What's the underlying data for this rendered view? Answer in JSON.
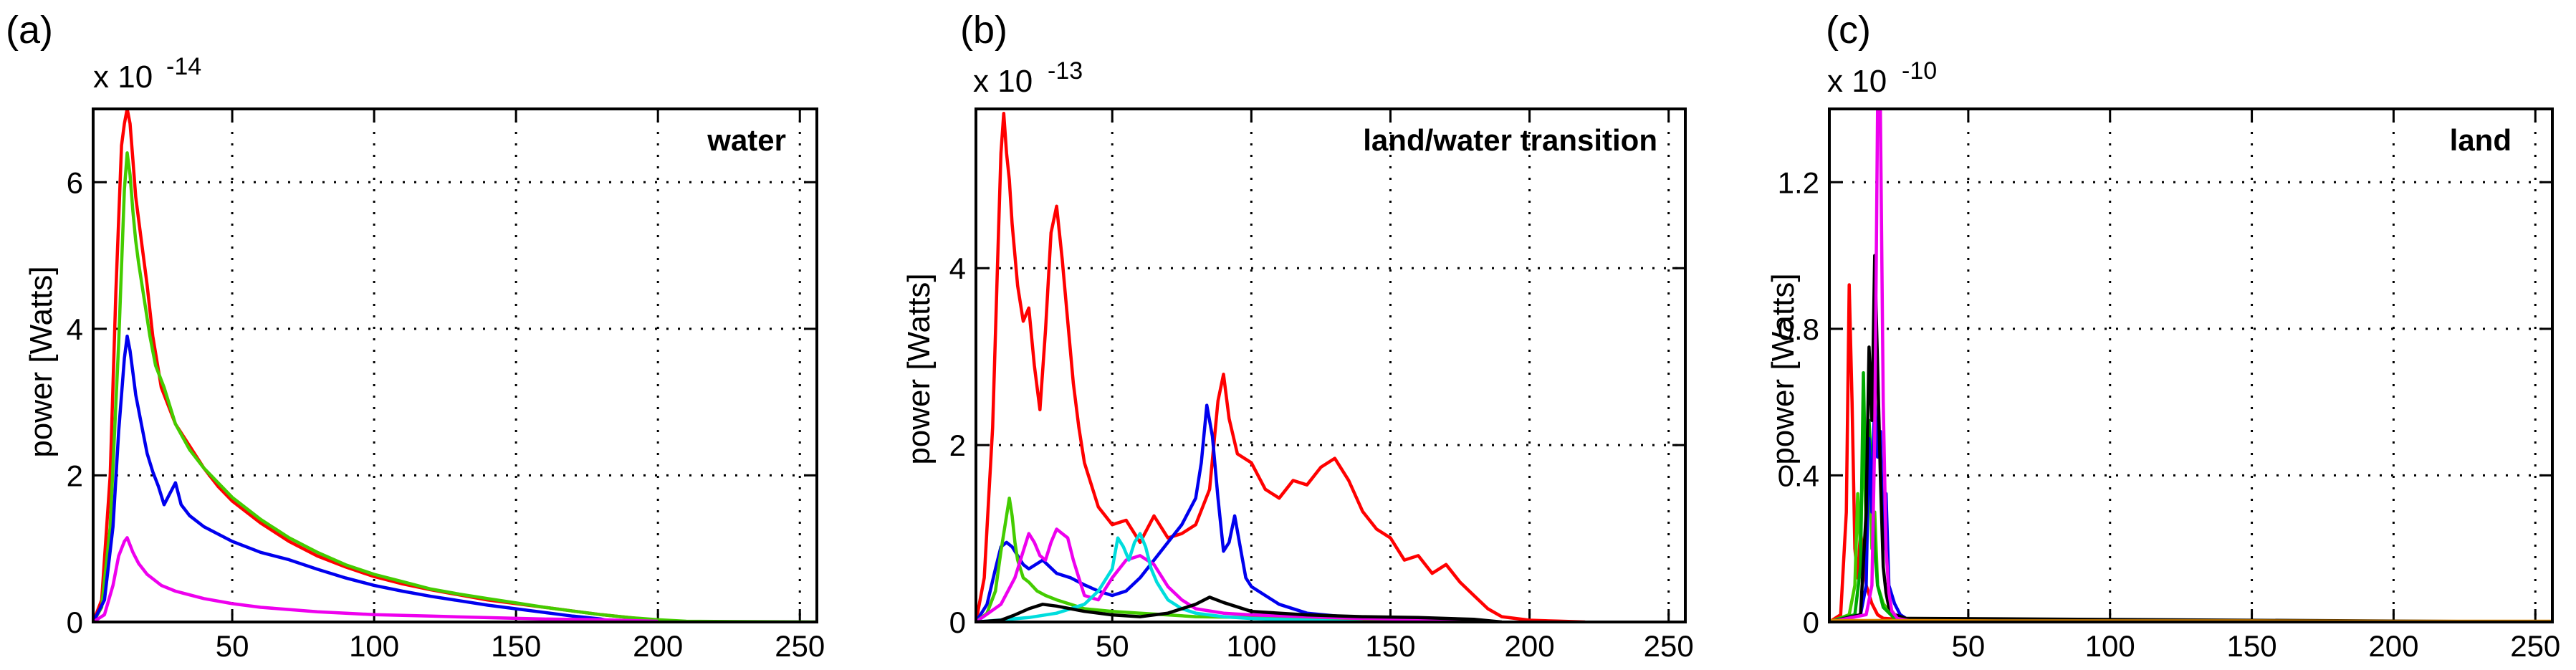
{
  "chart_data": [
    {
      "type": "line",
      "panel_label": "(a)",
      "annotation": "water",
      "ylabel": "power [Watts]",
      "scale_base": "x 10",
      "scale_exponent": "-14",
      "xlim": [
        1,
        256
      ],
      "ylim": [
        0,
        7
      ],
      "xticks": [
        50,
        100,
        150,
        200,
        250
      ],
      "xtick_labels": [
        "50",
        "100",
        "150",
        "200",
        "250"
      ],
      "yticks": [
        0,
        2,
        4,
        6
      ],
      "ytick_labels": [
        "0",
        "2",
        "4",
        "6"
      ],
      "grid": true,
      "series": [
        {
          "color": "#ff0000",
          "x": [
            1,
            4,
            7,
            9,
            11,
            12,
            13,
            14,
            15,
            16,
            18,
            20,
            22,
            25,
            30,
            35,
            40,
            45,
            50,
            60,
            70,
            80,
            90,
            100,
            110,
            120,
            130,
            140,
            150,
            160,
            170,
            180,
            190,
            200,
            205
          ],
          "y": [
            0,
            0.3,
            2.0,
            4.5,
            6.5,
            6.8,
            7.0,
            6.8,
            6.3,
            5.8,
            5.2,
            4.6,
            3.9,
            3.2,
            2.7,
            2.4,
            2.1,
            1.85,
            1.65,
            1.35,
            1.1,
            0.9,
            0.75,
            0.62,
            0.52,
            0.44,
            0.37,
            0.3,
            0.25,
            0.2,
            0.15,
            0.1,
            0.06,
            0.02,
            0.0
          ]
        },
        {
          "color": "#44cc00",
          "x": [
            1,
            4,
            7,
            10,
            12,
            13,
            14,
            15,
            16,
            17,
            19,
            21,
            23,
            26,
            30,
            35,
            40,
            45,
            50,
            60,
            70,
            80,
            90,
            100,
            110,
            120,
            130,
            140,
            150,
            160,
            170,
            180,
            190,
            200,
            210,
            256
          ],
          "y": [
            0,
            0.2,
            1.3,
            3.8,
            5.9,
            6.4,
            6.1,
            5.6,
            5.2,
            4.9,
            4.4,
            3.9,
            3.5,
            3.2,
            2.7,
            2.35,
            2.1,
            1.9,
            1.7,
            1.4,
            1.15,
            0.95,
            0.78,
            0.65,
            0.55,
            0.45,
            0.38,
            0.32,
            0.26,
            0.2,
            0.15,
            0.1,
            0.06,
            0.03,
            0.01,
            0
          ]
        },
        {
          "color": "#0000ee",
          "x": [
            1,
            5,
            8,
            10,
            12,
            13,
            14,
            15,
            16,
            18,
            20,
            22,
            24,
            26,
            28,
            30,
            32,
            35,
            40,
            45,
            50,
            60,
            70,
            80,
            90,
            100,
            110,
            120,
            130,
            140,
            150,
            160,
            170,
            180,
            185
          ],
          "y": [
            0,
            0.3,
            1.3,
            2.6,
            3.6,
            3.9,
            3.7,
            3.4,
            3.1,
            2.7,
            2.3,
            2.05,
            1.85,
            1.6,
            1.75,
            1.9,
            1.6,
            1.45,
            1.3,
            1.2,
            1.1,
            0.95,
            0.85,
            0.72,
            0.6,
            0.5,
            0.42,
            0.35,
            0.29,
            0.23,
            0.18,
            0.13,
            0.08,
            0.04,
            0
          ]
        },
        {
          "color": "#ee00ee",
          "x": [
            1,
            5,
            8,
            10,
            12,
            13,
            14,
            15,
            17,
            20,
            25,
            30,
            40,
            50,
            60,
            70,
            80,
            90,
            100,
            120,
            140,
            160,
            180,
            200
          ],
          "y": [
            0,
            0.1,
            0.5,
            0.9,
            1.1,
            1.15,
            1.05,
            0.95,
            0.8,
            0.65,
            0.5,
            0.42,
            0.32,
            0.25,
            0.2,
            0.17,
            0.14,
            0.12,
            0.1,
            0.08,
            0.06,
            0.04,
            0.03,
            0.01
          ]
        }
      ]
    },
    {
      "type": "line",
      "panel_label": "(b)",
      "annotation": "land/water transition",
      "ylabel": "power [Watts]",
      "scale_base": "x 10",
      "scale_exponent": "-13",
      "xlim": [
        1,
        256
      ],
      "ylim": [
        0,
        5.8
      ],
      "xticks": [
        50,
        100,
        150,
        200,
        250
      ],
      "xtick_labels": [
        "50",
        "100",
        "150",
        "200",
        "250"
      ],
      "yticks": [
        0,
        2,
        4
      ],
      "ytick_labels": [
        "0",
        "2",
        "4"
      ],
      "grid": true,
      "series": [
        {
          "color": "#ff0000",
          "x": [
            1,
            4,
            7,
            9,
            10,
            11,
            12,
            13,
            14,
            16,
            18,
            20,
            22,
            24,
            26,
            28,
            30,
            32,
            34,
            36,
            38,
            40,
            45,
            50,
            55,
            60,
            65,
            70,
            75,
            80,
            85,
            88,
            90,
            92,
            95,
            100,
            105,
            110,
            115,
            120,
            125,
            130,
            135,
            140,
            145,
            150,
            155,
            160,
            165,
            170,
            175,
            180,
            185,
            190,
            200,
            210,
            220
          ],
          "y": [
            0,
            0.5,
            2.2,
            4.3,
            5.3,
            5.75,
            5.3,
            5.0,
            4.5,
            3.8,
            3.4,
            3.55,
            2.9,
            2.4,
            3.3,
            4.4,
            4.7,
            4.1,
            3.4,
            2.7,
            2.2,
            1.8,
            1.3,
            1.1,
            1.15,
            0.9,
            1.2,
            0.95,
            1.0,
            1.1,
            1.5,
            2.5,
            2.8,
            2.3,
            1.9,
            1.8,
            1.5,
            1.4,
            1.6,
            1.55,
            1.75,
            1.85,
            1.6,
            1.25,
            1.05,
            0.95,
            0.7,
            0.75,
            0.55,
            0.65,
            0.45,
            0.3,
            0.15,
            0.06,
            0.02,
            0.01,
            0
          ]
        },
        {
          "color": "#0000ee",
          "x": [
            1,
            5,
            8,
            10,
            12,
            14,
            16,
            18,
            20,
            25,
            30,
            35,
            40,
            45,
            50,
            55,
            60,
            65,
            70,
            75,
            80,
            82,
            84,
            86,
            88,
            90,
            92,
            94,
            96,
            98,
            100,
            105,
            110,
            120,
            140,
            160
          ],
          "y": [
            0,
            0.2,
            0.6,
            0.85,
            0.9,
            0.85,
            0.75,
            0.65,
            0.6,
            0.7,
            0.55,
            0.5,
            0.42,
            0.35,
            0.3,
            0.35,
            0.5,
            0.7,
            0.9,
            1.1,
            1.4,
            1.8,
            2.45,
            2.1,
            1.4,
            0.8,
            0.9,
            1.2,
            0.85,
            0.5,
            0.4,
            0.3,
            0.2,
            0.1,
            0.04,
            0
          ]
        },
        {
          "color": "#44cc00",
          "x": [
            1,
            5,
            8,
            10,
            12,
            13,
            14,
            15,
            16,
            18,
            20,
            23,
            26,
            30,
            35,
            40,
            50,
            60,
            70,
            80,
            100,
            120,
            140,
            160,
            180
          ],
          "y": [
            0,
            0.1,
            0.35,
            0.8,
            1.2,
            1.4,
            1.2,
            0.9,
            0.7,
            0.5,
            0.45,
            0.35,
            0.3,
            0.25,
            0.2,
            0.15,
            0.12,
            0.1,
            0.08,
            0.06,
            0.05,
            0.04,
            0.03,
            0.02,
            0
          ]
        },
        {
          "color": "#ee00ee",
          "x": [
            1,
            10,
            15,
            18,
            20,
            22,
            24,
            26,
            28,
            30,
            32,
            34,
            36,
            38,
            40,
            45,
            50,
            55,
            60,
            65,
            70,
            75,
            80,
            90,
            100,
            120,
            140,
            160,
            180
          ],
          "y": [
            0,
            0.2,
            0.5,
            0.8,
            1.0,
            0.9,
            0.75,
            0.7,
            0.9,
            1.05,
            1.0,
            0.95,
            0.7,
            0.5,
            0.3,
            0.25,
            0.5,
            0.7,
            0.75,
            0.65,
            0.4,
            0.25,
            0.15,
            0.1,
            0.08,
            0.06,
            0.04,
            0.03,
            0.01
          ]
        },
        {
          "color": "#00dddd",
          "x": [
            1,
            20,
            30,
            40,
            45,
            50,
            52,
            54,
            56,
            58,
            60,
            62,
            64,
            66,
            68,
            70,
            75,
            80,
            90,
            100,
            120,
            140
          ],
          "y": [
            0,
            0.05,
            0.1,
            0.2,
            0.35,
            0.6,
            0.95,
            0.85,
            0.7,
            0.9,
            1.0,
            0.85,
            0.6,
            0.45,
            0.35,
            0.25,
            0.15,
            0.1,
            0.06,
            0.04,
            0.02,
            0
          ]
        },
        {
          "color": "#000000",
          "x": [
            1,
            10,
            15,
            20,
            25,
            30,
            40,
            50,
            60,
            70,
            80,
            85,
            90,
            100,
            120,
            140,
            160,
            180,
            190
          ],
          "y": [
            0,
            0.02,
            0.08,
            0.15,
            0.2,
            0.18,
            0.12,
            0.08,
            0.06,
            0.1,
            0.2,
            0.28,
            0.22,
            0.12,
            0.08,
            0.06,
            0.05,
            0.03,
            0
          ]
        }
      ]
    },
    {
      "type": "line",
      "panel_label": "(c)",
      "annotation": "land",
      "ylabel": "power [Watts]",
      "scale_base": "x 10",
      "scale_exponent": "-10",
      "xlim": [
        1,
        256
      ],
      "ylim": [
        0,
        1.4
      ],
      "xticks": [
        50,
        100,
        150,
        200,
        250
      ],
      "xtick_labels": [
        "50",
        "100",
        "150",
        "200",
        "250"
      ],
      "yticks": [
        0,
        0.4,
        0.8,
        1.2
      ],
      "ytick_labels": [
        "0",
        "0.4",
        "0.8",
        "1.2"
      ],
      "grid": true,
      "series": [
        {
          "color": "#ff0000",
          "x": [
            1,
            5,
            7,
            8,
            9,
            10,
            11,
            12,
            14,
            16,
            18,
            20,
            30,
            50,
            256
          ],
          "y": [
            0,
            0.02,
            0.3,
            0.92,
            0.6,
            0.2,
            0.12,
            0.25,
            0.1,
            0.05,
            0.02,
            0.01,
            0.005,
            0.002,
            0
          ]
        },
        {
          "color": "#44cc00",
          "x": [
            1,
            8,
            10,
            11,
            12,
            13,
            14,
            15,
            16,
            17,
            18,
            20,
            22,
            25,
            30,
            50,
            256
          ],
          "y": [
            0,
            0.02,
            0.1,
            0.35,
            0.2,
            0.55,
            0.25,
            0.45,
            0.2,
            0.3,
            0.1,
            0.05,
            0.03,
            0.01,
            0.005,
            0.002,
            0
          ]
        },
        {
          "color": "#00aa00",
          "x": [
            1,
            10,
            12,
            13,
            14,
            15,
            16,
            17,
            18,
            20,
            24,
            30,
            256
          ],
          "y": [
            0,
            0.02,
            0.15,
            0.68,
            0.3,
            0.55,
            0.4,
            0.2,
            0.1,
            0.04,
            0.01,
            0,
            0
          ]
        },
        {
          "color": "#0000ee",
          "x": [
            1,
            12,
            14,
            15,
            16,
            17,
            18,
            19,
            20,
            21,
            22,
            24,
            26,
            30,
            256
          ],
          "y": [
            0,
            0.02,
            0.1,
            0.5,
            0.3,
            0.62,
            0.45,
            0.52,
            0.2,
            0.35,
            0.1,
            0.05,
            0.02,
            0,
            0
          ]
        },
        {
          "color": "#000000",
          "x": [
            1,
            12,
            14,
            15,
            16,
            17,
            18,
            19,
            20,
            21,
            22,
            24,
            28,
            256
          ],
          "y": [
            0,
            0.02,
            0.3,
            0.75,
            0.55,
            1.0,
            0.7,
            0.4,
            0.15,
            0.08,
            0.04,
            0.02,
            0.01,
            0
          ]
        },
        {
          "color": "#ee00ee",
          "x": [
            1,
            14,
            16,
            17,
            18,
            19,
            20,
            21,
            22,
            23,
            25,
            28,
            32,
            256
          ],
          "y": [
            0,
            0.02,
            0.1,
            0.5,
            1.4,
            1.4,
            0.6,
            0.2,
            0.08,
            0.03,
            0.01,
            0.005,
            0,
            0
          ]
        },
        {
          "color": "#dd8800",
          "x": [
            1,
            30,
            60,
            100,
            150,
            200,
            256
          ],
          "y": [
            0.004,
            0.004,
            0.003,
            0.003,
            0.003,
            0.002,
            0.002
          ]
        }
      ]
    }
  ]
}
